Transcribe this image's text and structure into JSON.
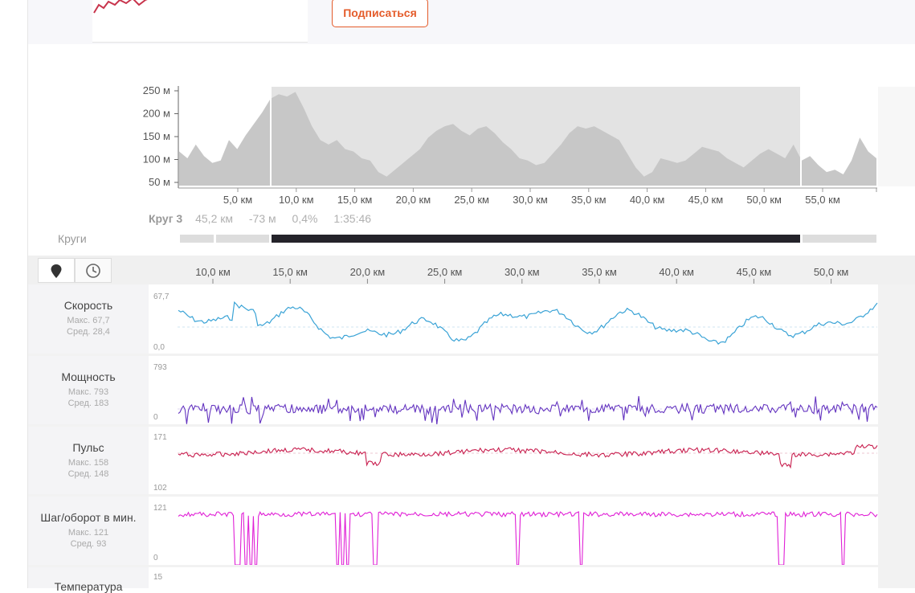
{
  "header": {
    "follow_label": "Подписаться"
  },
  "elevation": {
    "y_ticks": [
      "250 м",
      "200 м",
      "150 м",
      "100 м",
      "50 м"
    ],
    "x_ticks": [
      "5,0 км",
      "10,0 км",
      "15,0 км",
      "20,0 км",
      "25,0 км",
      "30,0 км",
      "35,0 км",
      "40,0 км",
      "45,0 км",
      "50,0 км",
      "55,0 км"
    ],
    "profile_m": [
      115,
      100,
      130,
      105,
      90,
      95,
      140,
      120,
      150,
      175,
      200,
      230,
      240,
      235,
      245,
      210,
      170,
      140,
      130,
      140,
      120,
      115,
      100,
      95,
      70,
      60,
      75,
      90,
      105,
      120,
      145,
      160,
      170,
      175,
      160,
      150,
      165,
      170,
      155,
      135,
      120,
      100,
      95,
      85,
      90,
      110,
      130,
      155,
      170,
      165,
      170,
      160,
      150,
      140,
      110,
      80,
      60,
      70,
      100,
      95,
      90,
      95,
      110,
      125,
      120,
      115,
      100,
      90,
      80,
      95,
      110,
      120,
      110,
      100,
      130,
      95,
      105,
      85,
      70,
      75,
      65,
      95,
      145,
      115,
      100
    ]
  },
  "lap": {
    "name": "Круг 3",
    "distance": "45,2 км",
    "elevation": "-73 м",
    "grade": "0,4%",
    "time": "1:35:46"
  },
  "laps_label": "Круги",
  "streams": {
    "x_ticks": [
      "10,0 км",
      "15,0 км",
      "20,0 км",
      "25,0 км",
      "30,0 км",
      "35,0 км",
      "40,0 км",
      "45,0 км",
      "50,0 км"
    ],
    "speed": {
      "title": "Скорость",
      "max": "Макс. 67,7",
      "avg": "Сред. 28,4",
      "ymax": "67,7",
      "ymin": "0,0",
      "color": "#3aa3d6"
    },
    "power": {
      "title": "Мощность",
      "max": "Макс. 793",
      "avg": "Сред. 183",
      "ymax": "793",
      "ymin": "0",
      "color": "#6434c0"
    },
    "hr": {
      "title": "Пульс",
      "max": "Макс. 158",
      "avg": "Сред. 148",
      "ymax": "171",
      "ymin": "102",
      "color": "#c81e4e"
    },
    "cadence": {
      "title": "Шаг/оборот в мин.",
      "max": "Макс. 121",
      "avg": "Сред. 93",
      "ymax": "121",
      "ymin": "0",
      "color": "#e020d6"
    },
    "temperature": {
      "title": "Температура",
      "ymax": "15"
    }
  },
  "icons": {
    "location": "map-pin-icon",
    "time": "clock-icon"
  }
}
